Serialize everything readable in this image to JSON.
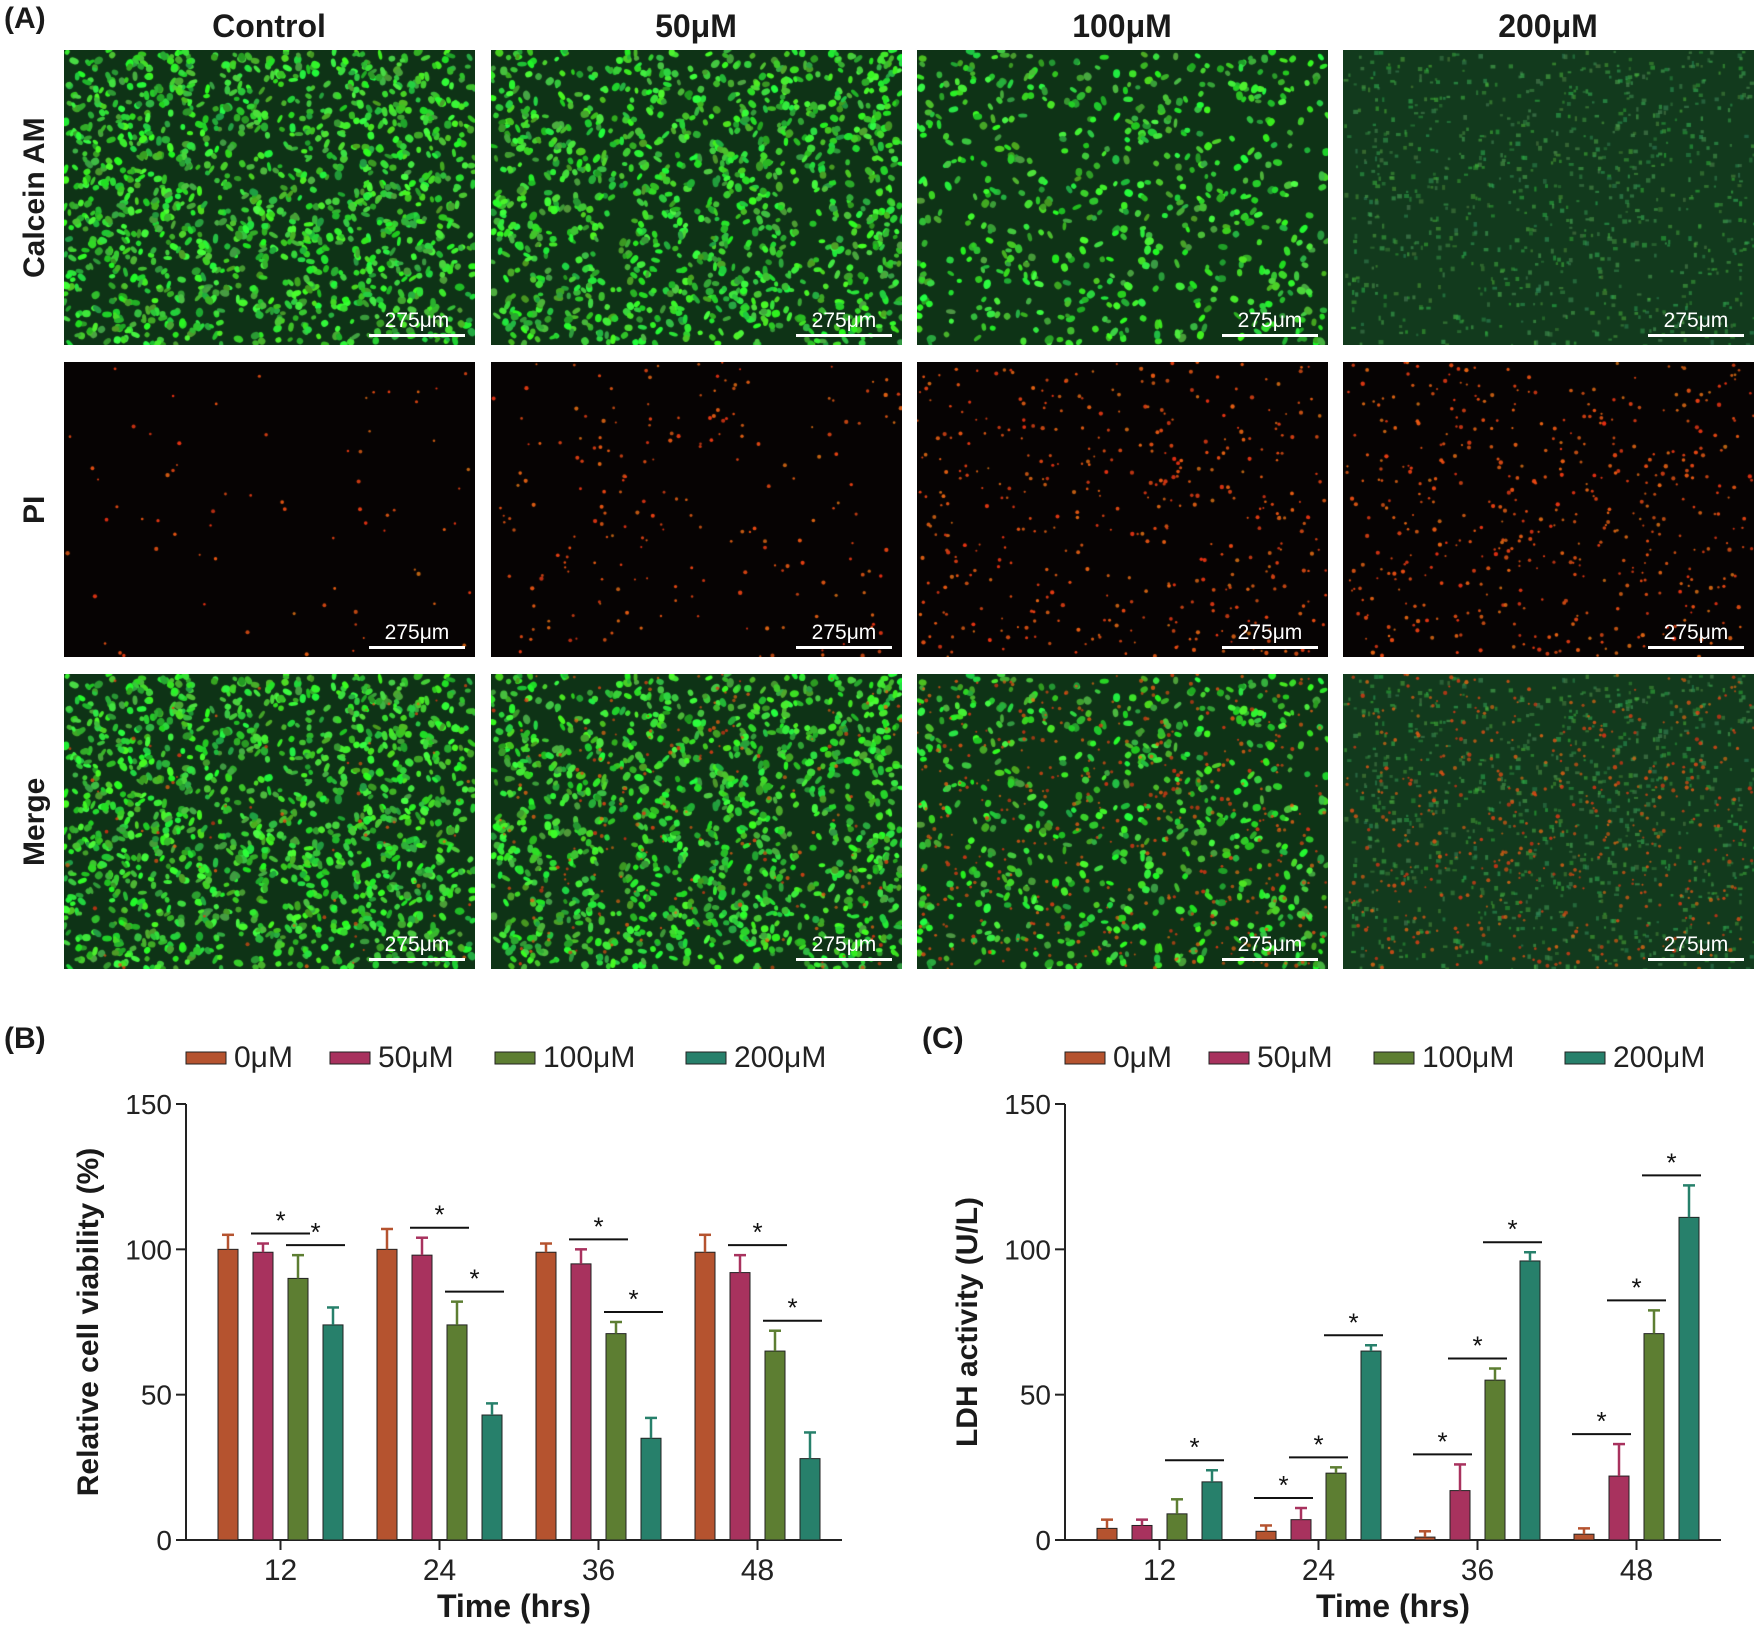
{
  "panel_a": {
    "letter": "(A)",
    "columns": [
      "Control",
      "50μM",
      "100μM",
      "200μM"
    ],
    "rows": [
      "Calcein AM",
      "PI",
      "Merge"
    ],
    "scale_bar_label": "275μm"
  },
  "colors": {
    "0μM": "#b5532f",
    "50μM": "#a8325e",
    "100μM": "#5d7e32",
    "200μM": "#27806b"
  },
  "chart_data": [
    {
      "type": "bar",
      "panel": "(B)",
      "categories": [
        "12",
        "24",
        "36",
        "48"
      ],
      "xlabel": "Time (hrs)",
      "ylabel": "Relative cell viability (%)",
      "ylim": [
        0,
        150
      ],
      "yticks": [
        0,
        50,
        100,
        150
      ],
      "legend": "top",
      "series": [
        {
          "name": "0μM",
          "values": [
            100,
            100,
            99,
            99
          ],
          "errors": [
            5,
            7,
            3,
            6
          ]
        },
        {
          "name": "50μM",
          "values": [
            99,
            98,
            95,
            92
          ],
          "errors": [
            3,
            6,
            5,
            6
          ]
        },
        {
          "name": "100μM",
          "values": [
            90,
            74,
            71,
            65
          ],
          "errors": [
            8,
            8,
            4,
            7
          ]
        },
        {
          "name": "200μM",
          "values": [
            74,
            43,
            35,
            28
          ],
          "errors": [
            6,
            4,
            7,
            9
          ]
        }
      ],
      "significance": [
        {
          "category": "12",
          "from": 1,
          "to": 2,
          "label": "*"
        },
        {
          "category": "12",
          "from": 2,
          "to": 3,
          "label": "*"
        },
        {
          "category": "24",
          "from": 1,
          "to": 2,
          "label": "*"
        },
        {
          "category": "24",
          "from": 2,
          "to": 3,
          "label": "*"
        },
        {
          "category": "36",
          "from": 1,
          "to": 2,
          "label": "*"
        },
        {
          "category": "36",
          "from": 2,
          "to": 3,
          "label": "*"
        },
        {
          "category": "48",
          "from": 1,
          "to": 2,
          "label": "*"
        },
        {
          "category": "48",
          "from": 2,
          "to": 3,
          "label": "*"
        }
      ]
    },
    {
      "type": "bar",
      "panel": "(C)",
      "categories": [
        "12",
        "24",
        "36",
        "48"
      ],
      "xlabel": "Time (hrs)",
      "ylabel": "LDH activity (U/L)",
      "ylim": [
        0,
        150
      ],
      "yticks": [
        0,
        50,
        100,
        150
      ],
      "legend": "top",
      "series": [
        {
          "name": "0μM",
          "values": [
            4,
            3,
            1,
            2
          ],
          "errors": [
            3,
            2,
            2,
            2
          ]
        },
        {
          "name": "50μM",
          "values": [
            5,
            7,
            17,
            22
          ],
          "errors": [
            2,
            4,
            9,
            11
          ]
        },
        {
          "name": "100μM",
          "values": [
            9,
            23,
            55,
            71
          ],
          "errors": [
            5,
            2,
            4,
            8
          ]
        },
        {
          "name": "200μM",
          "values": [
            20,
            65,
            96,
            111
          ],
          "errors": [
            4,
            2,
            3,
            11
          ]
        }
      ],
      "significance": [
        {
          "category": "12",
          "from": 2,
          "to": 3,
          "label": "*"
        },
        {
          "category": "24",
          "from": 0,
          "to": 1,
          "label": "*"
        },
        {
          "category": "24",
          "from": 1,
          "to": 2,
          "label": "*"
        },
        {
          "category": "24",
          "from": 2,
          "to": 3,
          "label": "*"
        },
        {
          "category": "36",
          "from": 0,
          "to": 1,
          "label": "*"
        },
        {
          "category": "36",
          "from": 1,
          "to": 2,
          "label": "*"
        },
        {
          "category": "36",
          "from": 2,
          "to": 3,
          "label": "*"
        },
        {
          "category": "48",
          "from": 0,
          "to": 1,
          "label": "*"
        },
        {
          "category": "48",
          "from": 1,
          "to": 2,
          "label": "*"
        },
        {
          "category": "48",
          "from": 2,
          "to": 3,
          "label": "*"
        }
      ]
    }
  ]
}
